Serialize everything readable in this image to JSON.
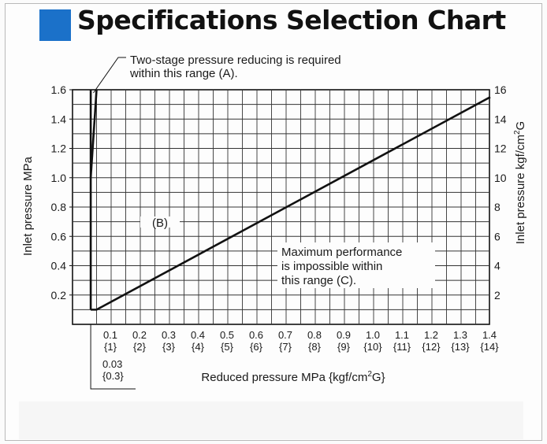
{
  "header": {
    "title": "Specifications Selection Chart",
    "accent_color": "#1b71c9"
  },
  "chart_data": {
    "type": "line",
    "title": "Specifications Selection Chart",
    "xlabel_prefix": "Reduced pressure  MPa {kgf/cm",
    "xlabel_sup": "2",
    "xlabel_suffix": "G}",
    "ylabel_left": "Inlet pressure MPa",
    "ylabel_right_prefix": "Inlet pressure  kgf/cm",
    "ylabel_right_sup": "2",
    "ylabel_right_suffix": "G",
    "xlim": [
      0,
      1.4
    ],
    "ylim": [
      0,
      1.6
    ],
    "grid": true,
    "x_ticks": [
      0.1,
      0.2,
      0.3,
      0.4,
      0.5,
      0.6,
      0.7,
      0.8,
      0.9,
      1.0,
      1.1,
      1.2,
      1.3,
      1.4
    ],
    "x_tick_labels": [
      "0.1",
      "0.2",
      "0.3",
      "0.4",
      "0.5",
      "0.6",
      "0.7",
      "0.8",
      "0.9",
      "1.0",
      "1.1",
      "1.2",
      "1.3",
      "1.4"
    ],
    "x_tick_labels_kgf": [
      "{1}",
      "{2}",
      "{3}",
      "{4}",
      "{5}",
      "{6}",
      "{7}",
      "{8}",
      "{9}",
      "{10}",
      "{11}",
      "{12}",
      "{13}",
      "{14}"
    ],
    "x_extra_tick": {
      "x": 0.03,
      "label": "0.03",
      "label_kgf": "{0.3}"
    },
    "y_ticks_left": [
      0.2,
      0.4,
      0.6,
      0.8,
      1.0,
      1.2,
      1.4,
      1.6
    ],
    "y_tick_labels_left": [
      "0.2",
      "0.4",
      "0.6",
      "0.8",
      "1.0",
      "1.2",
      "1.4",
      "1.6"
    ],
    "y_ticks_right": [
      0.2,
      0.4,
      0.6,
      0.8,
      1.0,
      1.2,
      1.4,
      1.6
    ],
    "y_tick_labels_right": [
      "2",
      "4",
      "6",
      "8",
      "10",
      "12",
      "14",
      "16"
    ],
    "series": [
      {
        "values": [
          [
            0.03,
            0.1
          ],
          [
            0.03,
            1.6
          ]
        ]
      },
      {
        "values": [
          [
            0.03,
            1.0
          ],
          [
            0.05,
            1.6
          ]
        ]
      },
      {
        "values": [
          [
            0.03,
            0.1
          ],
          [
            0.05,
            0.1
          ],
          [
            1.4,
            1.55
          ]
        ]
      }
    ],
    "annotations": [
      {
        "id": "A",
        "text_lines": [
          "Two-stage pressure reducing is required",
          "within this range (A)."
        ],
        "x": 0.12,
        "y": 1.8
      },
      {
        "id": "B",
        "text_lines": [
          "(B)"
        ],
        "x": 0.22,
        "y": 0.72
      },
      {
        "id": "C",
        "text_lines": [
          "Maximum performance",
          "is impossible within",
          "this range (C)."
        ],
        "x": 0.65,
        "y": 0.45
      }
    ],
    "line_color": "#111111",
    "grid_color": "#333333"
  }
}
